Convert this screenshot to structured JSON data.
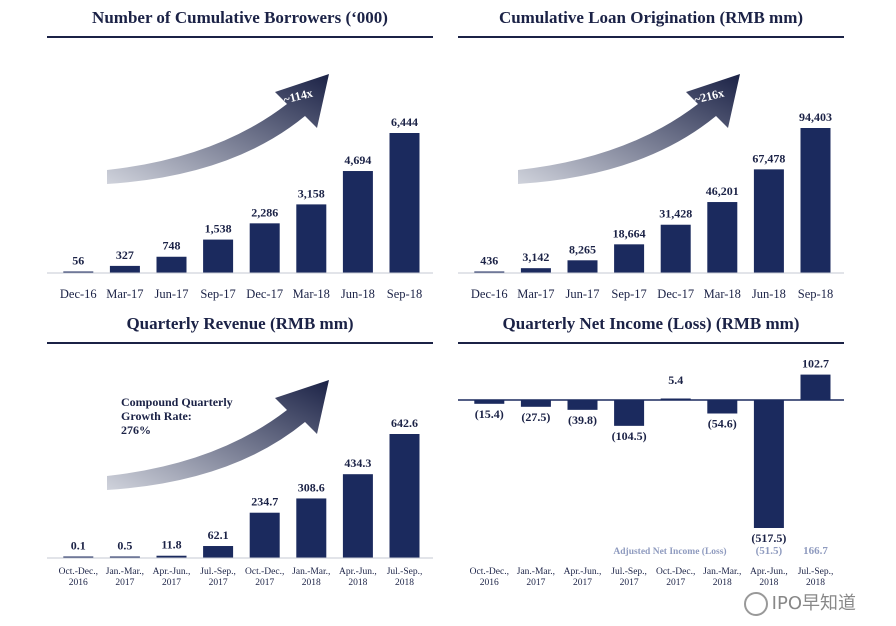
{
  "colors": {
    "bar": "#1b2a5e",
    "text": "#1b2246",
    "muted": "#8f9bbf",
    "arrow_dark": "#1b2246",
    "arrow_light": "#d0d3dc"
  },
  "watermark": "IPO早知道",
  "chart_data": [
    {
      "id": "borrowers",
      "type": "bar",
      "title": "Number of Cumulative Borrowers (‘000)",
      "categories": [
        "Dec-16",
        "Mar-17",
        "Jun-17",
        "Sep-17",
        "Dec-17",
        "Mar-18",
        "Jun-18",
        "Sep-18"
      ],
      "values": [
        56,
        327,
        748,
        1538,
        2286,
        3158,
        4694,
        6444
      ],
      "labels": [
        "56",
        "327",
        "748",
        "1,538",
        "2,286",
        "3,158",
        "4,694",
        "6,444"
      ],
      "ylim": [
        0,
        6444
      ],
      "arrow_label": "~114x"
    },
    {
      "id": "origination",
      "type": "bar",
      "title": "Cumulative Loan Origination (RMB mm)",
      "categories": [
        "Dec-16",
        "Mar-17",
        "Jun-17",
        "Sep-17",
        "Dec-17",
        "Mar-18",
        "Jun-18",
        "Sep-18"
      ],
      "values": [
        436,
        3142,
        8265,
        18664,
        31428,
        46201,
        67478,
        94403
      ],
      "labels": [
        "436",
        "3,142",
        "8,265",
        "18,664",
        "31,428",
        "46,201",
        "67,478",
        "94,403"
      ],
      "ylim": [
        0,
        94403
      ],
      "arrow_label": "~216x"
    },
    {
      "id": "revenue",
      "type": "bar",
      "title": "Quarterly Revenue (RMB mm)",
      "categories": [
        [
          "Oct.-Dec.,",
          "2016"
        ],
        [
          "Jan.-Mar.,",
          "2017"
        ],
        [
          "Apr.-Jun.,",
          "2017"
        ],
        [
          "Jul.-Sep.,",
          "2017"
        ],
        [
          "Oct.-Dec.,",
          "2017"
        ],
        [
          "Jan.-Mar.,",
          "2018"
        ],
        [
          "Apr.-Jun.,",
          "2018"
        ],
        [
          "Jul.-Sep.,",
          "2018"
        ]
      ],
      "values": [
        0.1,
        0.5,
        11.8,
        62.1,
        234.7,
        308.6,
        434.3,
        642.6
      ],
      "labels": [
        "0.1",
        "0.5",
        "11.8",
        "62.1",
        "234.7",
        "308.6",
        "434.3",
        "642.6"
      ],
      "ylim": [
        0,
        642.6
      ],
      "annotation": [
        "Compound Quarterly",
        "Growth Rate:",
        "276%"
      ]
    },
    {
      "id": "net_income",
      "type": "bar",
      "title": "Quarterly Net Income (Loss) (RMB mm)",
      "categories": [
        [
          "Oct.-Dec.,",
          "2016"
        ],
        [
          "Jan.-Mar.,",
          "2017"
        ],
        [
          "Apr.-Jun.,",
          "2017"
        ],
        [
          "Jul.-Sep.,",
          "2017"
        ],
        [
          "Oct.-Dec.,",
          "2017"
        ],
        [
          "Jan.-Mar.,",
          "2018"
        ],
        [
          "Apr.-Jun.,",
          "2018"
        ],
        [
          "Jul.-Sep.,",
          "2018"
        ]
      ],
      "values": [
        -15.4,
        -27.5,
        -39.8,
        -104.5,
        5.4,
        -54.6,
        -517.5,
        102.7
      ],
      "labels": [
        "(15.4)",
        "(27.5)",
        "(39.8)",
        "(104.5)",
        "5.4",
        "(54.6)",
        "(517.5)",
        "102.7"
      ],
      "ylim": [
        -517.5,
        102.7
      ],
      "adjusted": {
        "label": "Adjusted Net Income (Loss)",
        "values": [
          "(51.5)",
          "166.7"
        ]
      }
    }
  ]
}
